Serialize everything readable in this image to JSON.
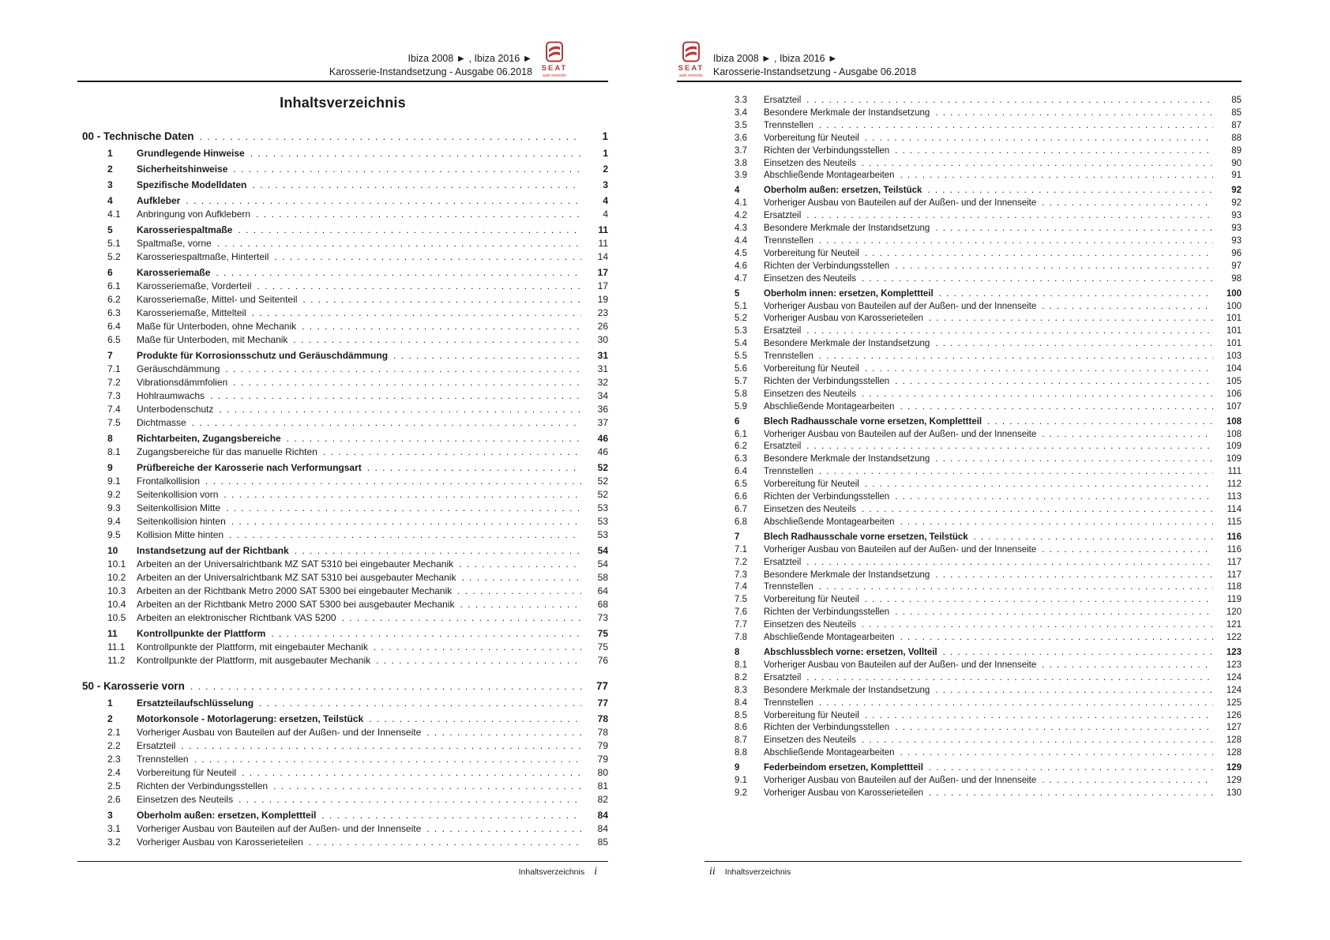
{
  "colors": {
    "brand_red": "#b23b3b",
    "text": "#1a1a1a"
  },
  "logo": {
    "brand": "SEAT",
    "tagline": "auto emoción"
  },
  "header": {
    "line1": "Ibiza 2008 ► , Ibiza 2016 ►",
    "line2": "Karosserie-Instandsetzung - Ausgabe 06.2018"
  },
  "page_left": {
    "title": "Inhaltsverzeichnis",
    "footer": {
      "label": "Inhaltsverzeichnis",
      "page_roman": "i"
    },
    "entries": [
      {
        "level": "chapter",
        "num": "",
        "title": "00 - Technische Daten",
        "page": "1"
      },
      {
        "level": "section",
        "num": "1",
        "title": "Grundlegende Hinweise",
        "page": "1"
      },
      {
        "level": "section",
        "num": "2",
        "title": "Sicherheitshinweise",
        "page": "2"
      },
      {
        "level": "section",
        "num": "3",
        "title": "Spezifische Modelldaten",
        "page": "3"
      },
      {
        "level": "section",
        "num": "4",
        "title": "Aufkleber",
        "page": "4"
      },
      {
        "level": "sub",
        "num": "4.1",
        "title": "Anbringung von Aufklebern",
        "page": "4"
      },
      {
        "level": "section",
        "num": "5",
        "title": "Karosseriespaltmaße",
        "page": "11"
      },
      {
        "level": "sub",
        "num": "5.1",
        "title": "Spaltmaße, vorne",
        "page": "11"
      },
      {
        "level": "sub",
        "num": "5.2",
        "title": "Karosseriespaltmaße, Hinterteil",
        "page": "14"
      },
      {
        "level": "section",
        "num": "6",
        "title": "Karosseriemaße",
        "page": "17"
      },
      {
        "level": "sub",
        "num": "6.1",
        "title": "Karosseriemaße, Vorderteil",
        "page": "17"
      },
      {
        "level": "sub",
        "num": "6.2",
        "title": "Karosseriemaße, Mittel- und Seitenteil",
        "page": "19"
      },
      {
        "level": "sub",
        "num": "6.3",
        "title": "Karosseriemaße, Mittelteil",
        "page": "23"
      },
      {
        "level": "sub",
        "num": "6.4",
        "title": "Maße für Unterboden, ohne Mechanik",
        "page": "26"
      },
      {
        "level": "sub",
        "num": "6.5",
        "title": "Maße für Unterboden, mit Mechanik",
        "page": "30"
      },
      {
        "level": "section",
        "num": "7",
        "title": "Produkte für Korrosionsschutz und Geräuschdämmung",
        "page": "31"
      },
      {
        "level": "sub",
        "num": "7.1",
        "title": "Geräuschdämmung",
        "page": "31"
      },
      {
        "level": "sub",
        "num": "7.2",
        "title": "Vibrationsdämmfolien",
        "page": "32"
      },
      {
        "level": "sub",
        "num": "7.3",
        "title": "Hohlraumwachs",
        "page": "34"
      },
      {
        "level": "sub",
        "num": "7.4",
        "title": "Unterbodenschutz",
        "page": "36"
      },
      {
        "level": "sub",
        "num": "7.5",
        "title": "Dichtmasse",
        "page": "37"
      },
      {
        "level": "section",
        "num": "8",
        "title": "Richtarbeiten, Zugangsbereiche",
        "page": "46"
      },
      {
        "level": "sub",
        "num": "8.1",
        "title": "Zugangsbereiche für das manuelle Richten",
        "page": "46"
      },
      {
        "level": "section",
        "num": "9",
        "title": "Prüfbereiche der Karosserie nach Verformungsart",
        "page": "52"
      },
      {
        "level": "sub",
        "num": "9.1",
        "title": "Frontalkollision",
        "page": "52"
      },
      {
        "level": "sub",
        "num": "9.2",
        "title": "Seitenkollision vorn",
        "page": "52"
      },
      {
        "level": "sub",
        "num": "9.3",
        "title": "Seitenkollision Mitte",
        "page": "53"
      },
      {
        "level": "sub",
        "num": "9.4",
        "title": "Seitenkollision hinten",
        "page": "53"
      },
      {
        "level": "sub",
        "num": "9.5",
        "title": "Kollision Mitte hinten",
        "page": "53"
      },
      {
        "level": "section",
        "num": "10",
        "title": "Instandsetzung auf der Richtbank",
        "page": "54"
      },
      {
        "level": "sub",
        "num": "10.1",
        "title": "Arbeiten an der Universalrichtbank MZ SAT 5310 bei eingebauter Mechanik",
        "page": "54"
      },
      {
        "level": "sub",
        "num": "10.2",
        "title": "Arbeiten an der Universalrichtbank MZ SAT 5310 bei ausgebauter Mechanik",
        "page": "58"
      },
      {
        "level": "sub",
        "num": "10.3",
        "title": "Arbeiten an der Richtbank Metro 2000 SAT 5300 bei eingebauter Mechanik",
        "page": "64"
      },
      {
        "level": "sub",
        "num": "10.4",
        "title": "Arbeiten an der Richtbank Metro 2000 SAT 5300 bei ausgebauter Mechanik",
        "page": "68"
      },
      {
        "level": "sub",
        "num": "10.5",
        "title": "Arbeiten an elektronischer Richtbank VAS 5200",
        "page": "73"
      },
      {
        "level": "section",
        "num": "11",
        "title": "Kontrollpunkte der Plattform",
        "page": "75"
      },
      {
        "level": "sub",
        "num": "11.1",
        "title": "Kontrollpunkte der Plattform, mit eingebauter Mechanik",
        "page": "75"
      },
      {
        "level": "sub",
        "num": "11.2",
        "title": "Kontrollpunkte der Plattform, mit ausgebauter Mechanik",
        "page": "76"
      },
      {
        "level": "chapter",
        "num": "",
        "title": "50 - Karosserie vorn",
        "page": "77"
      },
      {
        "level": "section",
        "num": "1",
        "title": "Ersatzteilaufschlüsselung",
        "page": "77"
      },
      {
        "level": "section",
        "num": "2",
        "title": "Motorkonsole - Motorlagerung: ersetzen, Teilstück",
        "page": "78"
      },
      {
        "level": "sub",
        "num": "2.1",
        "title": "Vorheriger Ausbau von Bauteilen auf der Außen- und der Innenseite",
        "page": "78"
      },
      {
        "level": "sub",
        "num": "2.2",
        "title": "Ersatzteil",
        "page": "79"
      },
      {
        "level": "sub",
        "num": "2.3",
        "title": "Trennstellen",
        "page": "79"
      },
      {
        "level": "sub",
        "num": "2.4",
        "title": "Vorbereitung für Neuteil",
        "page": "80"
      },
      {
        "level": "sub",
        "num": "2.5",
        "title": "Richten der Verbindungsstellen",
        "page": "81"
      },
      {
        "level": "sub",
        "num": "2.6",
        "title": "Einsetzen des Neuteils",
        "page": "82"
      },
      {
        "level": "section",
        "num": "3",
        "title": "Oberholm außen: ersetzen, Komplettteil",
        "page": "84"
      },
      {
        "level": "sub",
        "num": "3.1",
        "title": "Vorheriger Ausbau von Bauteilen auf der Außen- und der Innenseite",
        "page": "84"
      },
      {
        "level": "sub",
        "num": "3.2",
        "title": "Vorheriger Ausbau von Karosserieteilen",
        "page": "85"
      }
    ]
  },
  "page_right": {
    "footer": {
      "label": "Inhaltsverzeichnis",
      "page_roman": "ii"
    },
    "entries": [
      {
        "level": "sub",
        "num": "3.3",
        "title": "Ersatzteil",
        "page": "85"
      },
      {
        "level": "sub",
        "num": "3.4",
        "title": "Besondere Merkmale der Instandsetzung",
        "page": "85"
      },
      {
        "level": "sub",
        "num": "3.5",
        "title": "Trennstellen",
        "page": "87"
      },
      {
        "level": "sub",
        "num": "3.6",
        "title": "Vorbereitung für Neuteil",
        "page": "88"
      },
      {
        "level": "sub",
        "num": "3.7",
        "title": "Richten der Verbindungsstellen",
        "page": "89"
      },
      {
        "level": "sub",
        "num": "3.8",
        "title": "Einsetzen des Neuteils",
        "page": "90"
      },
      {
        "level": "sub",
        "num": "3.9",
        "title": "Abschließende Montagearbeiten",
        "page": "91"
      },
      {
        "level": "section",
        "num": "4",
        "title": "Oberholm außen: ersetzen, Teilstück",
        "page": "92"
      },
      {
        "level": "sub",
        "num": "4.1",
        "title": "Vorheriger Ausbau von Bauteilen auf der Außen- und der Innenseite",
        "page": "92"
      },
      {
        "level": "sub",
        "num": "4.2",
        "title": "Ersatzteil",
        "page": "93"
      },
      {
        "level": "sub",
        "num": "4.3",
        "title": "Besondere Merkmale der Instandsetzung",
        "page": "93"
      },
      {
        "level": "sub",
        "num": "4.4",
        "title": "Trennstellen",
        "page": "93"
      },
      {
        "level": "sub",
        "num": "4.5",
        "title": "Vorbereitung für Neuteil",
        "page": "96"
      },
      {
        "level": "sub",
        "num": "4.6",
        "title": "Richten der Verbindungsstellen",
        "page": "97"
      },
      {
        "level": "sub",
        "num": "4.7",
        "title": "Einsetzen des Neuteils",
        "page": "98"
      },
      {
        "level": "section",
        "num": "5",
        "title": "Oberholm innen: ersetzen, Komplettteil",
        "page": "100"
      },
      {
        "level": "sub",
        "num": "5.1",
        "title": "Vorheriger Ausbau von Bauteilen auf der Außen- und der Innenseite",
        "page": "100"
      },
      {
        "level": "sub",
        "num": "5.2",
        "title": "Vorheriger Ausbau von Karosserieteilen",
        "page": "101"
      },
      {
        "level": "sub",
        "num": "5.3",
        "title": "Ersatzteil",
        "page": "101"
      },
      {
        "level": "sub",
        "num": "5.4",
        "title": "Besondere Merkmale der Instandsetzung",
        "page": "101"
      },
      {
        "level": "sub",
        "num": "5.5",
        "title": "Trennstellen",
        "page": "103"
      },
      {
        "level": "sub",
        "num": "5.6",
        "title": "Vorbereitung für Neuteil",
        "page": "104"
      },
      {
        "level": "sub",
        "num": "5.7",
        "title": "Richten der Verbindungsstellen",
        "page": "105"
      },
      {
        "level": "sub",
        "num": "5.8",
        "title": "Einsetzen des Neuteils",
        "page": "106"
      },
      {
        "level": "sub",
        "num": "5.9",
        "title": "Abschließende Montagearbeiten",
        "page": "107"
      },
      {
        "level": "section",
        "num": "6",
        "title": "Blech Radhausschale vorne ersetzen, Komplettteil",
        "page": "108"
      },
      {
        "level": "sub",
        "num": "6.1",
        "title": "Vorheriger Ausbau von Bauteilen auf der Außen- und der Innenseite",
        "page": "108"
      },
      {
        "level": "sub",
        "num": "6.2",
        "title": "Ersatzteil",
        "page": "109"
      },
      {
        "level": "sub",
        "num": "6.3",
        "title": "Besondere Merkmale der Instandsetzung",
        "page": "109"
      },
      {
        "level": "sub",
        "num": "6.4",
        "title": "Trennstellen",
        "page": "111"
      },
      {
        "level": "sub",
        "num": "6.5",
        "title": "Vorbereitung für Neuteil",
        "page": "112"
      },
      {
        "level": "sub",
        "num": "6.6",
        "title": "Richten der Verbindungsstellen",
        "page": "113"
      },
      {
        "level": "sub",
        "num": "6.7",
        "title": "Einsetzen des Neuteils",
        "page": "114"
      },
      {
        "level": "sub",
        "num": "6.8",
        "title": "Abschließende Montagearbeiten",
        "page": "115"
      },
      {
        "level": "section",
        "num": "7",
        "title": "Blech Radhausschale vorne ersetzen, Teilstück",
        "page": "116"
      },
      {
        "level": "sub",
        "num": "7.1",
        "title": "Vorheriger Ausbau von Bauteilen auf der Außen- und der Innenseite",
        "page": "116"
      },
      {
        "level": "sub",
        "num": "7.2",
        "title": "Ersatzteil",
        "page": "117"
      },
      {
        "level": "sub",
        "num": "7.3",
        "title": "Besondere Merkmale der Instandsetzung",
        "page": "117"
      },
      {
        "level": "sub",
        "num": "7.4",
        "title": "Trennstellen",
        "page": "118"
      },
      {
        "level": "sub",
        "num": "7.5",
        "title": "Vorbereitung für Neuteil",
        "page": "119"
      },
      {
        "level": "sub",
        "num": "7.6",
        "title": "Richten der Verbindungsstellen",
        "page": "120"
      },
      {
        "level": "sub",
        "num": "7.7",
        "title": "Einsetzen des Neuteils",
        "page": "121"
      },
      {
        "level": "sub",
        "num": "7.8",
        "title": "Abschließende Montagearbeiten",
        "page": "122"
      },
      {
        "level": "section",
        "num": "8",
        "title": "Abschlussblech vorne: ersetzen, Vollteil",
        "page": "123"
      },
      {
        "level": "sub",
        "num": "8.1",
        "title": "Vorheriger Ausbau von Bauteilen auf der Außen- und der Innenseite",
        "page": "123"
      },
      {
        "level": "sub",
        "num": "8.2",
        "title": "Ersatzteil",
        "page": "124"
      },
      {
        "level": "sub",
        "num": "8.3",
        "title": "Besondere Merkmale der Instandsetzung",
        "page": "124"
      },
      {
        "level": "sub",
        "num": "8.4",
        "title": "Trennstellen",
        "page": "125"
      },
      {
        "level": "sub",
        "num": "8.5",
        "title": "Vorbereitung für Neuteil",
        "page": "126"
      },
      {
        "level": "sub",
        "num": "8.6",
        "title": "Richten der Verbindungsstellen",
        "page": "127"
      },
      {
        "level": "sub",
        "num": "8.7",
        "title": "Einsetzen des Neuteils",
        "page": "128"
      },
      {
        "level": "sub",
        "num": "8.8",
        "title": "Abschließende Montagearbeiten",
        "page": "128"
      },
      {
        "level": "section",
        "num": "9",
        "title": "Federbeindom ersetzen, Komplettteil",
        "page": "129"
      },
      {
        "level": "sub",
        "num": "9.1",
        "title": "Vorheriger Ausbau von Bauteilen auf der Außen- und der Innenseite",
        "page": "129"
      },
      {
        "level": "sub",
        "num": "9.2",
        "title": "Vorheriger Ausbau von Karosserieteilen",
        "page": "130"
      }
    ]
  }
}
